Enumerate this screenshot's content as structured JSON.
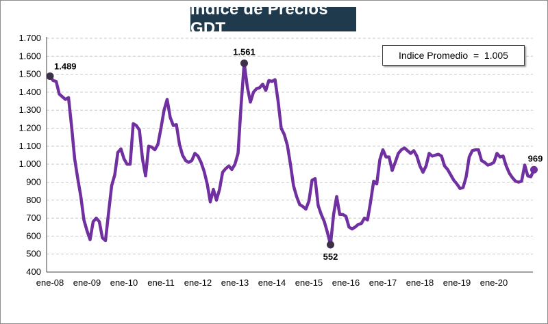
{
  "chart_data": {
    "type": "line",
    "title": "Indice de Precios GDT",
    "xlabel": "",
    "ylabel": "",
    "ylim": [
      400,
      1700
    ],
    "yticks": [
      "400",
      "500",
      "600",
      "700",
      "800",
      "900",
      "1.000",
      "1.100",
      "1.200",
      "1.300",
      "1.400",
      "1.500",
      "1.600",
      "1.700"
    ],
    "ytick_values": [
      400,
      500,
      600,
      700,
      800,
      900,
      1000,
      1100,
      1200,
      1300,
      1400,
      1500,
      1600,
      1700
    ],
    "xticks": [
      "ene-08",
      "ene-09",
      "ene-10",
      "ene-11",
      "ene-12",
      "ene-13",
      "ene-14",
      "ene-15",
      "ene-16",
      "ene-17",
      "ene-18",
      "ene-19",
      "ene-20"
    ],
    "grid": true,
    "line_color": "#7030a0",
    "marker_color": "#3d3048",
    "average_label": "Indice Promedio  =  1.005",
    "annotations": [
      {
        "label": "1.489",
        "value": 1489
      },
      {
        "label": "1.561",
        "value": 1561
      },
      {
        "label": "552",
        "value": 552
      },
      {
        "label": "969",
        "value": 969
      }
    ],
    "series": [
      {
        "values": [
          1489,
          1465,
          1460,
          1390,
          1375,
          1360,
          1370,
          1210,
          1030,
          920,
          820,
          690,
          630,
          580,
          680,
          700,
          680,
          590,
          575,
          730,
          880,
          940,
          1065,
          1085,
          1030,
          1000,
          1000,
          1225,
          1215,
          1190,
          1030,
          935,
          1100,
          1095,
          1080,
          1110,
          1200,
          1300,
          1360,
          1260,
          1215,
          1220,
          1110,
          1050,
          1020,
          1010,
          1020,
          1060,
          1045,
          1010,
          960,
          890,
          790,
          860,
          800,
          860,
          955,
          975,
          990,
          970,
          1000,
          1060,
          1330,
          1561,
          1430,
          1345,
          1400,
          1420,
          1425,
          1445,
          1410,
          1465,
          1460,
          1470,
          1350,
          1200,
          1165,
          1105,
          1000,
          880,
          820,
          775,
          765,
          750,
          795,
          910,
          920,
          770,
          720,
          680,
          620,
          552,
          720,
          820,
          720,
          720,
          710,
          650,
          640,
          650,
          665,
          670,
          700,
          690,
          790,
          905,
          890,
          1025,
          1080,
          1040,
          1040,
          965,
          1010,
          1060,
          1080,
          1090,
          1075,
          1060,
          1075,
          1045,
          990,
          955,
          990,
          1060,
          1045,
          1050,
          1055,
          1045,
          990,
          970,
          940,
          910,
          890,
          865,
          870,
          930,
          1040,
          1075,
          1080,
          1080,
          1020,
          1010,
          995,
          1000,
          1010,
          1060,
          1040,
          1045,
          990,
          950,
          925,
          905,
          900,
          905,
          995,
          935,
          930,
          969
        ]
      }
    ]
  }
}
